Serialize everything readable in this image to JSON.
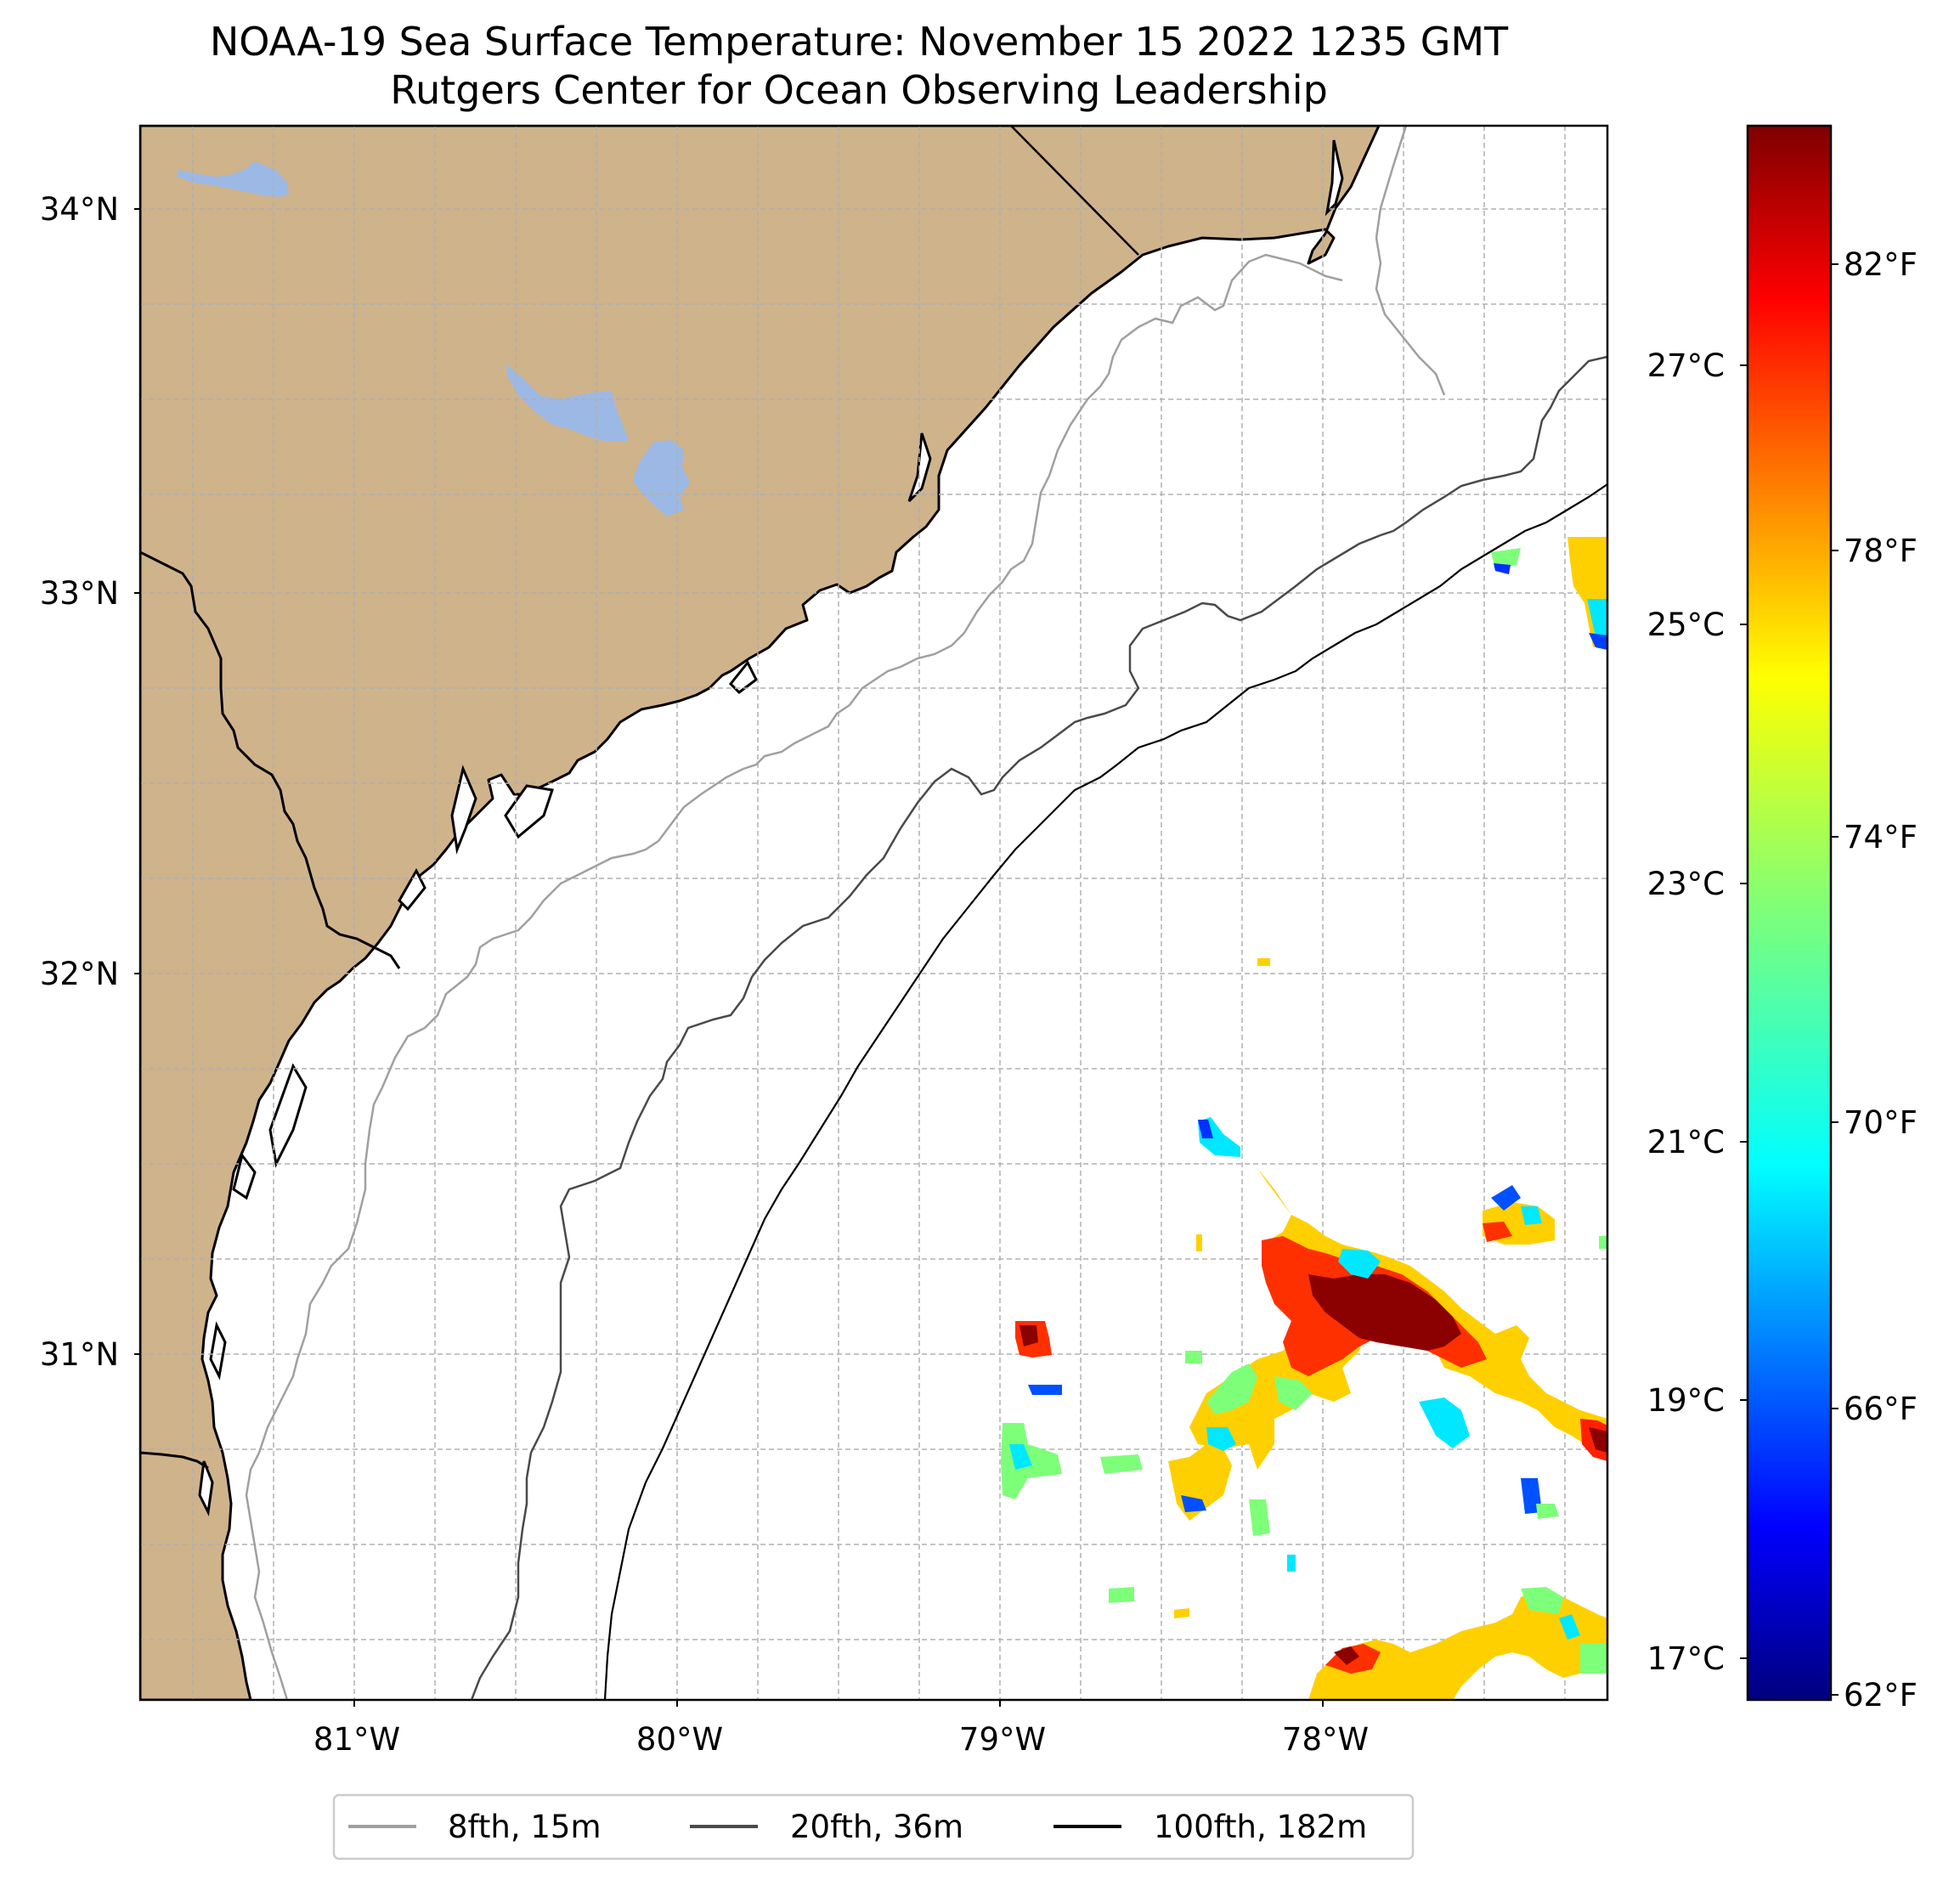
{
  "title": {
    "line1": "NOAA-19 Sea Surface Temperature: November 15 2022 1235 GMT",
    "line2": "Rutgers Center for Ocean Observing Leadership"
  },
  "map": {
    "lon_range": [
      -81.68,
      -77.12
    ],
    "lat_range": [
      30.07,
      34.22
    ],
    "lat_ticks": [
      "34°N",
      "33°N",
      "32°N",
      "31°N"
    ],
    "lon_ticks": [
      "81°W",
      "80°W",
      "79°W",
      "78°W"
    ],
    "land_color": "#cfb38b",
    "lake_color": "#9cb9e5",
    "ocean_color": "#ffffff",
    "grid": "dashed light gray"
  },
  "colorbar": {
    "colormap": "jet",
    "range_f": [
      62,
      84
    ],
    "fahrenheit_ticks": [
      "82°F",
      "78°F",
      "74°F",
      "70°F",
      "66°F",
      "62°F"
    ],
    "celsius_ticks": [
      "27°C",
      "25°C",
      "23°C",
      "21°C",
      "19°C",
      "17°C"
    ]
  },
  "legend": {
    "items": [
      {
        "label": "8fth, 15m",
        "color": "#a0a0a0"
      },
      {
        "label": "20fth, 36m",
        "color": "#4a4a4a"
      },
      {
        "label": "100fth, 182m",
        "color": "#000000"
      }
    ]
  }
}
